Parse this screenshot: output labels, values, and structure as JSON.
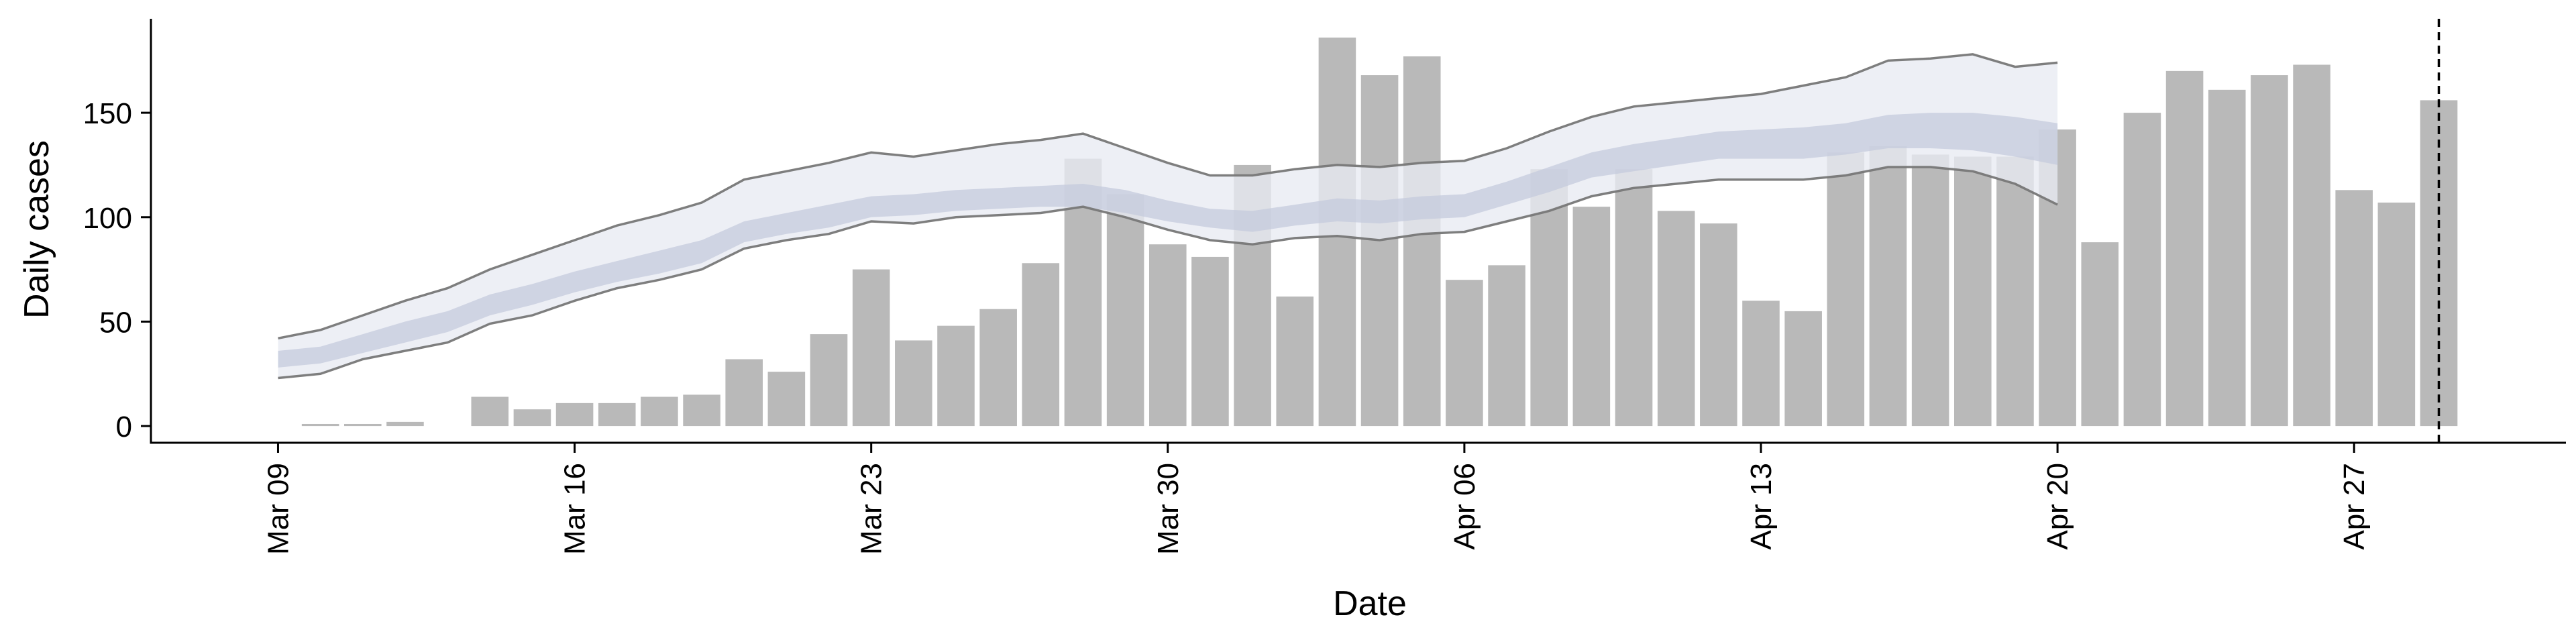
{
  "chart_data": {
    "type": "bar",
    "title": "",
    "xlabel": "Date",
    "ylabel": "Daily cases",
    "ylim": [
      -8,
      195
    ],
    "y_ticks": [
      0,
      50,
      100,
      150
    ],
    "x_ticks": [
      "Mar 09",
      "Mar 16",
      "Mar 23",
      "Mar 30",
      "Apr 06",
      "Apr 13",
      "Apr 20",
      "Apr 27"
    ],
    "x_tick_dates": [
      "2020-03-09",
      "2020-03-16",
      "2020-03-23",
      "2020-03-30",
      "2020-04-06",
      "2020-04-13",
      "2020-04-20",
      "2020-04-27"
    ],
    "xlim": [
      "2020-03-06",
      "2020-05-02"
    ],
    "grid": false,
    "legend": "none",
    "vertical_line_date": "2020-04-29",
    "series": [
      {
        "type": "bar",
        "dates": [
          "2020-03-10",
          "2020-03-11",
          "2020-03-12",
          "2020-03-13",
          "2020-03-14",
          "2020-03-15",
          "2020-03-16",
          "2020-03-17",
          "2020-03-18",
          "2020-03-19",
          "2020-03-20",
          "2020-03-21",
          "2020-03-22",
          "2020-03-23",
          "2020-03-24",
          "2020-03-25",
          "2020-03-26",
          "2020-03-27",
          "2020-03-28",
          "2020-03-29",
          "2020-03-30",
          "2020-03-31",
          "2020-04-01",
          "2020-04-02",
          "2020-04-03",
          "2020-04-04",
          "2020-04-05",
          "2020-04-06",
          "2020-04-07",
          "2020-04-08",
          "2020-04-09",
          "2020-04-10",
          "2020-04-11",
          "2020-04-12",
          "2020-04-13",
          "2020-04-14",
          "2020-04-15",
          "2020-04-16",
          "2020-04-17",
          "2020-04-18",
          "2020-04-19",
          "2020-04-20",
          "2020-04-21",
          "2020-04-22",
          "2020-04-23",
          "2020-04-24",
          "2020-04-25",
          "2020-04-26",
          "2020-04-27",
          "2020-04-28",
          "2020-04-29"
        ],
        "values": [
          1,
          1,
          2,
          0,
          14,
          8,
          11,
          11,
          14,
          15,
          32,
          26,
          44,
          75,
          41,
          48,
          56,
          78,
          128,
          111,
          87,
          81,
          125,
          62,
          186,
          168,
          177,
          70,
          77,
          123,
          105,
          123,
          103,
          97,
          60,
          55,
          131,
          134,
          130,
          129,
          129,
          142,
          88,
          150,
          170,
          161,
          168,
          173,
          113,
          107,
          156
        ]
      },
      {
        "type": "line",
        "role": "upper bound",
        "dates": [
          "2020-03-09",
          "2020-03-10",
          "2020-03-11",
          "2020-03-12",
          "2020-03-13",
          "2020-03-14",
          "2020-03-15",
          "2020-03-16",
          "2020-03-17",
          "2020-03-18",
          "2020-03-19",
          "2020-03-20",
          "2020-03-21",
          "2020-03-22",
          "2020-03-23",
          "2020-03-24",
          "2020-03-25",
          "2020-03-26",
          "2020-03-27",
          "2020-03-28",
          "2020-03-29",
          "2020-03-30",
          "2020-03-31",
          "2020-04-01",
          "2020-04-02",
          "2020-04-03",
          "2020-04-04",
          "2020-04-05",
          "2020-04-06",
          "2020-04-07",
          "2020-04-08",
          "2020-04-09",
          "2020-04-10",
          "2020-04-11",
          "2020-04-12",
          "2020-04-13",
          "2020-04-14",
          "2020-04-15",
          "2020-04-16",
          "2020-04-17",
          "2020-04-18",
          "2020-04-19",
          "2020-04-20"
        ],
        "values": [
          42,
          46,
          53,
          60,
          66,
          75,
          82,
          89,
          96,
          101,
          107,
          118,
          122,
          126,
          131,
          129,
          132,
          135,
          137,
          140,
          133,
          126,
          120,
          120,
          123,
          125,
          124,
          126,
          127,
          133,
          141,
          148,
          153,
          155,
          157,
          159,
          163,
          167,
          175,
          176,
          178,
          172,
          174
        ]
      },
      {
        "type": "line",
        "role": "lower bound",
        "dates": [
          "2020-03-09",
          "2020-03-10",
          "2020-03-11",
          "2020-03-12",
          "2020-03-13",
          "2020-03-14",
          "2020-03-15",
          "2020-03-16",
          "2020-03-17",
          "2020-03-18",
          "2020-03-19",
          "2020-03-20",
          "2020-03-21",
          "2020-03-22",
          "2020-03-23",
          "2020-03-24",
          "2020-03-25",
          "2020-03-26",
          "2020-03-27",
          "2020-03-28",
          "2020-03-29",
          "2020-03-30",
          "2020-03-31",
          "2020-04-01",
          "2020-04-02",
          "2020-04-03",
          "2020-04-04",
          "2020-04-05",
          "2020-04-06",
          "2020-04-07",
          "2020-04-08",
          "2020-04-09",
          "2020-04-10",
          "2020-04-11",
          "2020-04-12",
          "2020-04-13",
          "2020-04-14",
          "2020-04-15",
          "2020-04-16",
          "2020-04-17",
          "2020-04-18",
          "2020-04-19",
          "2020-04-20"
        ],
        "values": [
          23,
          25,
          32,
          36,
          40,
          49,
          53,
          60,
          66,
          70,
          75,
          85,
          89,
          92,
          98,
          97,
          100,
          101,
          102,
          105,
          100,
          94,
          89,
          87,
          90,
          91,
          89,
          92,
          93,
          98,
          103,
          110,
          114,
          116,
          118,
          118,
          118,
          120,
          124,
          124,
          122,
          116,
          106
        ]
      },
      {
        "type": "area",
        "role": "inner band",
        "dates": [
          "2020-03-09",
          "2020-03-10",
          "2020-03-11",
          "2020-03-12",
          "2020-03-13",
          "2020-03-14",
          "2020-03-15",
          "2020-03-16",
          "2020-03-17",
          "2020-03-18",
          "2020-03-19",
          "2020-03-20",
          "2020-03-21",
          "2020-03-22",
          "2020-03-23",
          "2020-03-24",
          "2020-03-25",
          "2020-03-26",
          "2020-03-27",
          "2020-03-28",
          "2020-03-29",
          "2020-03-30",
          "2020-03-31",
          "2020-04-01",
          "2020-04-02",
          "2020-04-03",
          "2020-04-04",
          "2020-04-05",
          "2020-04-06",
          "2020-04-07",
          "2020-04-08",
          "2020-04-09",
          "2020-04-10",
          "2020-04-11",
          "2020-04-12",
          "2020-04-13",
          "2020-04-14",
          "2020-04-15",
          "2020-04-16",
          "2020-04-17",
          "2020-04-18",
          "2020-04-19",
          "2020-04-20"
        ],
        "upper": [
          36,
          38,
          44,
          50,
          55,
          63,
          68,
          74,
          79,
          84,
          89,
          98,
          102,
          106,
          110,
          111,
          113,
          114,
          115,
          116,
          113,
          108,
          104,
          103,
          106,
          109,
          108,
          110,
          111,
          117,
          124,
          131,
          135,
          138,
          141,
          142,
          143,
          145,
          149,
          150,
          150,
          148,
          145
        ],
        "lower": [
          28,
          30,
          35,
          40,
          45,
          53,
          58,
          64,
          69,
          73,
          78,
          88,
          92,
          95,
          100,
          101,
          103,
          104,
          105,
          105,
          102,
          98,
          95,
          93,
          96,
          98,
          97,
          99,
          100,
          106,
          112,
          119,
          122,
          125,
          128,
          128,
          128,
          130,
          133,
          133,
          132,
          129,
          125
        ]
      }
    ],
    "colors": {
      "bars": "#b9b9b9",
      "bound_lines": "#777777",
      "outer_band": "#e8eaf2",
      "inner_band": "#c3c9dc",
      "axis": "#000000",
      "vertical_line": "#000000"
    }
  }
}
